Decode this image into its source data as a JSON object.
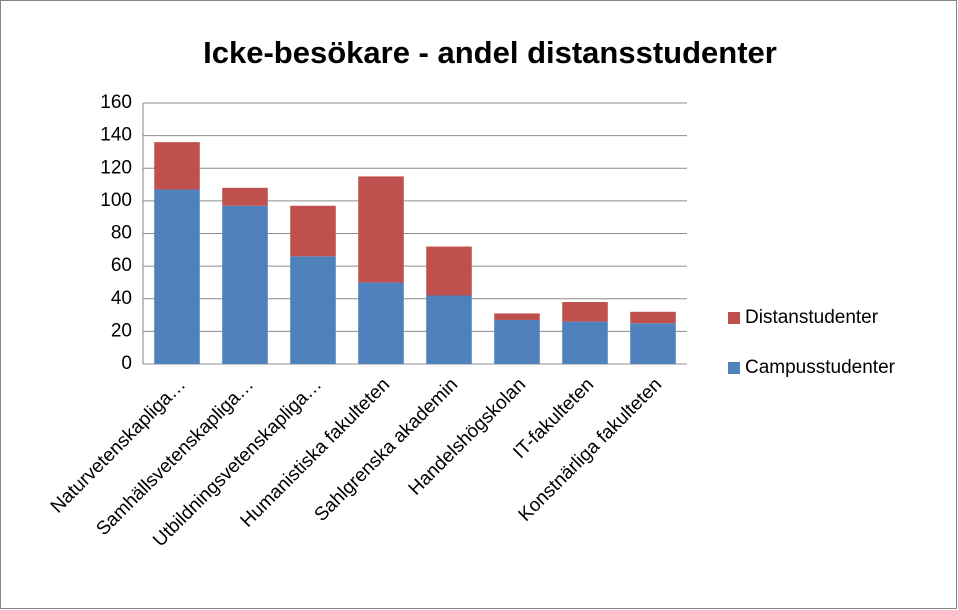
{
  "chart_data": {
    "type": "stacked_bar",
    "title": "Icke-besökare - andel distansstudenter",
    "categories": [
      "Naturvetenskapliga…",
      "Samhällsvetenskapliga…",
      "Utbildningsvetenskapliga…",
      "Humanistiska fakulteten",
      "Sahlgrenska akademin",
      "Handelshögskolan",
      "IT-fakulteten",
      "Konstnärliga fakulteten"
    ],
    "series": [
      {
        "name": "Campusstudenter",
        "color": "#4f81bd",
        "values": [
          107,
          97,
          66,
          50,
          42,
          27,
          26,
          25
        ]
      },
      {
        "name": "Distanstudenter",
        "color": "#c0504d",
        "values": [
          29,
          11,
          31,
          65,
          30,
          4,
          12,
          7
        ]
      }
    ],
    "ylim": [
      0,
      160
    ],
    "yticks": [
      0,
      20,
      40,
      60,
      80,
      100,
      120,
      140,
      160
    ],
    "grid": true,
    "legend": "right"
  }
}
